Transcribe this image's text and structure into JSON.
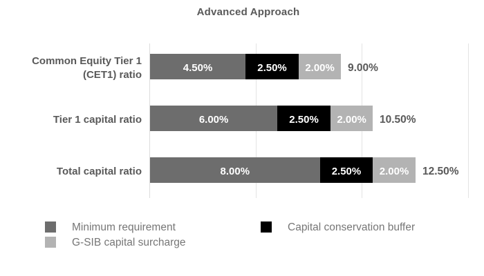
{
  "chart_data": {
    "type": "bar",
    "orientation": "horizontal",
    "stacked": true,
    "title": "Advanced Approach",
    "categories": [
      "Common Equity Tier 1 (CET1) ratio",
      "Tier 1 capital ratio",
      "Total capital ratio"
    ],
    "series": [
      {
        "name": "Minimum requirement",
        "color": "#6d6d6d",
        "values": [
          4.5,
          6.0,
          8.0
        ],
        "value_labels": [
          "4.50%",
          "6.00%",
          "8.00%"
        ]
      },
      {
        "name": "Capital conservation buffer",
        "color": "#000000",
        "values": [
          2.5,
          2.5,
          2.5
        ],
        "value_labels": [
          "2.50%",
          "2.50%",
          "2.50%"
        ]
      },
      {
        "name": "G-SIB capital surcharge",
        "color": "#b3b3b3",
        "values": [
          2.0,
          2.0,
          2.0
        ],
        "value_labels": [
          "2.00%",
          "2.00%",
          "2.00%"
        ]
      }
    ],
    "totals": [
      9.0,
      10.5,
      12.5
    ],
    "total_labels": [
      "9.00%",
      "10.50%",
      "12.50%"
    ],
    "xlim": [
      0,
      15
    ],
    "x_ticks": [
      0,
      5,
      10,
      15
    ],
    "grid": true,
    "legend_position": "bottom",
    "legend_columns": [
      [
        0,
        2
      ],
      [
        1
      ]
    ]
  },
  "colors": {
    "title_text": "#595959",
    "category_text": "#595959",
    "total_text": "#595959",
    "segment_text": "#ffffff",
    "legend_text": "#767676",
    "gridline": "#e3e3e3",
    "background": "#ffffff"
  }
}
